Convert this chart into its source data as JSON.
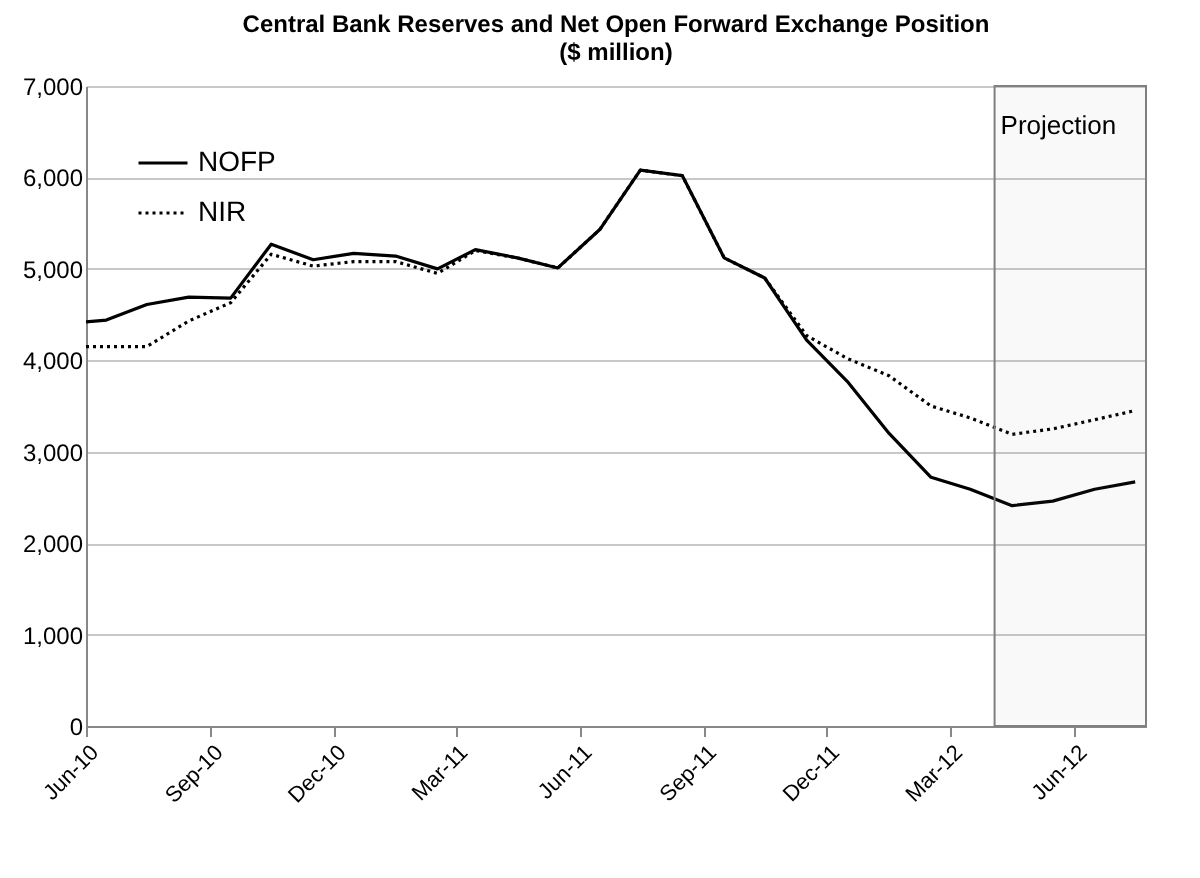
{
  "chart_data": {
    "type": "line",
    "title": "Central Bank Reserves and Net Open Forward Exchange Position",
    "subtitle": "($ million)",
    "x": [
      "2010-06-01",
      "2010-06-16",
      "2010-07-16",
      "2010-08-16",
      "2010-09-16",
      "2010-10-16",
      "2010-11-16",
      "2010-12-16",
      "2011-01-16",
      "2011-02-16",
      "2011-03-16",
      "2011-04-16",
      "2011-05-16",
      "2011-06-16",
      "2011-07-16",
      "2011-08-16",
      "2011-09-16",
      "2011-10-16",
      "2011-11-16",
      "2011-12-16",
      "2012-01-16",
      "2012-02-16",
      "2012-03-16",
      "2012-04-16",
      "2012-05-16",
      "2012-06-16",
      "2012-07-16"
    ],
    "series": [
      {
        "name": "NOFP",
        "color": "#000000",
        "line_style": "solid",
        "values": [
          4420,
          4440,
          4610,
          4690,
          4680,
          5270,
          5100,
          5170,
          5140,
          5000,
          5210,
          5120,
          5010,
          5430,
          6080,
          6020,
          5120,
          4900,
          4220,
          3770,
          3200,
          2720,
          2590,
          2410,
          2460,
          2590,
          2670
        ]
      },
      {
        "name": "NIR",
        "color": "#000000",
        "line_style": "dotted",
        "values": [
          4150,
          4150,
          4150,
          4430,
          4630,
          5160,
          5030,
          5080,
          5080,
          4950,
          5200,
          5120,
          5010,
          5430,
          6080,
          6020,
          5120,
          4900,
          4270,
          4020,
          3830,
          3500,
          3370,
          3190,
          3250,
          3350,
          3450
        ]
      }
    ],
    "xlim": [
      "2010-06-01",
      "2012-07-24"
    ],
    "xticks": [
      {
        "value": "2010-06-01",
        "label": "Jun-10"
      },
      {
        "value": "2010-09-01",
        "label": "Sep-10"
      },
      {
        "value": "2010-12-01",
        "label": "Dec-10"
      },
      {
        "value": "2011-03-01",
        "label": "Mar-11"
      },
      {
        "value": "2011-06-01",
        "label": "Jun-11"
      },
      {
        "value": "2011-09-01",
        "label": "Sep-11"
      },
      {
        "value": "2011-12-01",
        "label": "Dec-11"
      },
      {
        "value": "2012-03-01",
        "label": "Mar-12"
      },
      {
        "value": "2012-06-01",
        "label": "Jun-12"
      }
    ],
    "ylim": [
      0,
      7000
    ],
    "yticks": [
      {
        "value": 0,
        "label": "0"
      },
      {
        "value": 1000,
        "label": "1,000"
      },
      {
        "value": 2000,
        "label": "2,000"
      },
      {
        "value": 3000,
        "label": "3,000"
      },
      {
        "value": 4000,
        "label": "4,000"
      },
      {
        "value": 5000,
        "label": "5,000"
      },
      {
        "value": 6000,
        "label": "6,000"
      },
      {
        "value": 7000,
        "label": "7,000"
      }
    ],
    "grid": "y",
    "legend": "top left",
    "bands": [
      {
        "axis": "x",
        "from": "2012-04-03",
        "to": "2012-07-24",
        "label": "Projection",
        "color": "#808080"
      }
    ]
  }
}
